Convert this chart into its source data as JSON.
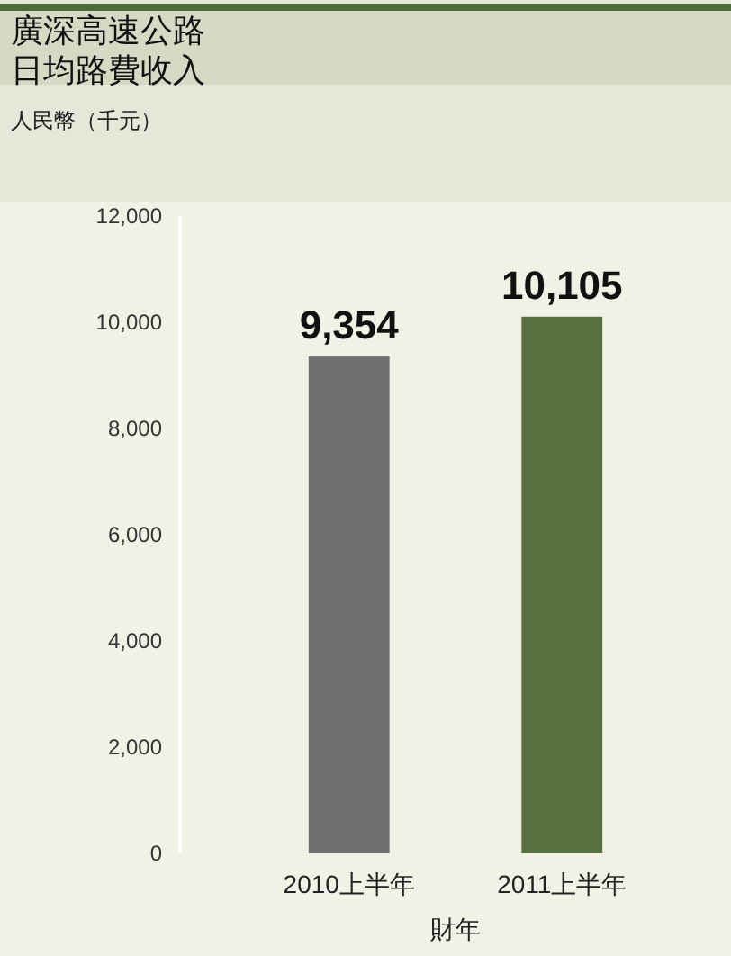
{
  "chart_data": {
    "type": "bar",
    "title": "廣深高速公路日均路費收入",
    "ylabel": "人民幣（千元）",
    "xlabel": "財年",
    "categories": [
      "2010上半年",
      "2011上半年"
    ],
    "values": [
      9354,
      10105
    ],
    "colors": [
      "#707070",
      "#56703f"
    ],
    "ylim": [
      0,
      12000
    ],
    "yticks": [
      0,
      {
        "value": 2000,
        "label": "2,000"
      },
      {
        "value": 4000,
        "label": "4,000"
      },
      {
        "value": 6000,
        "label": "6,000"
      },
      {
        "value": 8000,
        "label": "8,000"
      },
      {
        "value": 10000,
        "label": "10,000"
      },
      {
        "value": 12000,
        "label": "12,000"
      }
    ],
    "value_labels": [
      "9,354",
      "10,105"
    ],
    "grid": false
  }
}
